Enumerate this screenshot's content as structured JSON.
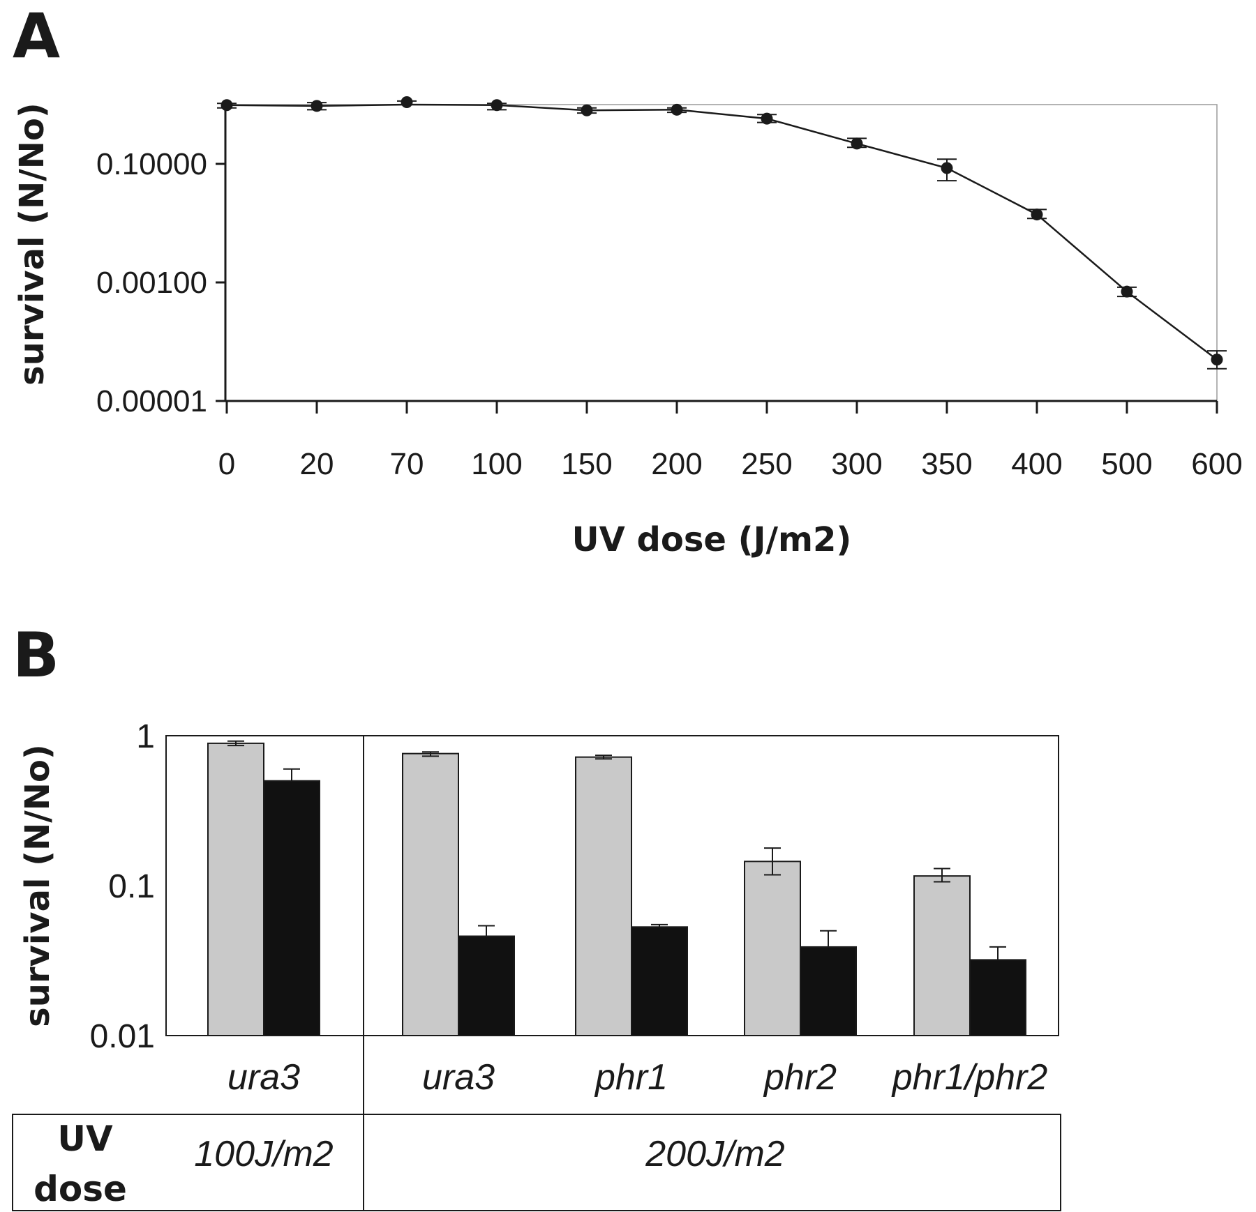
{
  "chart_data": [
    {
      "panel": "A",
      "type": "line",
      "xlabel": "UV dose (J/m2)",
      "ylabel": "survival (N/No)",
      "y_scale": "log",
      "ylim": [
        1e-05,
        1
      ],
      "y_ticks": [
        "0.00001",
        "0.00100",
        "0.10000"
      ],
      "categories": [
        "0",
        "20",
        "70",
        "100",
        "150",
        "200",
        "250",
        "300",
        "350",
        "400",
        "500",
        "600"
      ],
      "values": [
        0.98,
        0.95,
        1.1,
        0.98,
        0.8,
        0.82,
        0.58,
        0.22,
        0.085,
        0.014,
        0.0007,
        5e-05
      ],
      "error_low": [
        0.88,
        0.82,
        1.0,
        0.82,
        0.72,
        0.74,
        0.5,
        0.19,
        0.052,
        0.012,
        0.00058,
        3.5e-05
      ],
      "error_high": [
        1.05,
        1.08,
        1.15,
        1.05,
        0.88,
        0.88,
        0.68,
        0.27,
        0.12,
        0.017,
        0.00083,
        7e-05
      ],
      "grid": false
    },
    {
      "panel": "B",
      "type": "bar",
      "ylabel": "survival (N/No)",
      "y_scale": "log",
      "ylim": [
        0.01,
        1
      ],
      "y_ticks": [
        "0.01",
        "0.1",
        "1"
      ],
      "categories": [
        "ura3",
        "ura3",
        "phr1",
        "phr2",
        "phr1/phr2"
      ],
      "series": [
        {
          "color": "#c9c9c9",
          "values": [
            0.89,
            0.76,
            0.72,
            0.145,
            0.116
          ],
          "error_low": [
            0.86,
            0.73,
            0.7,
            0.118,
            0.106
          ],
          "error_high": [
            0.92,
            0.78,
            0.74,
            0.178,
            0.13
          ]
        },
        {
          "color": "#111111",
          "values": [
            0.5,
            0.046,
            0.053,
            0.039,
            0.032
          ],
          "error_low": [
            0.5,
            0.046,
            0.053,
            0.039,
            0.032
          ],
          "error_high": [
            0.6,
            0.054,
            0.055,
            0.05,
            0.039
          ]
        }
      ],
      "group_labels": [
        "100J/m2",
        "200J/m2"
      ],
      "row_label_line1": "UV",
      "row_label_line2": "dose",
      "grid": false
    }
  ],
  "panel_a_label": "A",
  "panel_b_label": "B"
}
